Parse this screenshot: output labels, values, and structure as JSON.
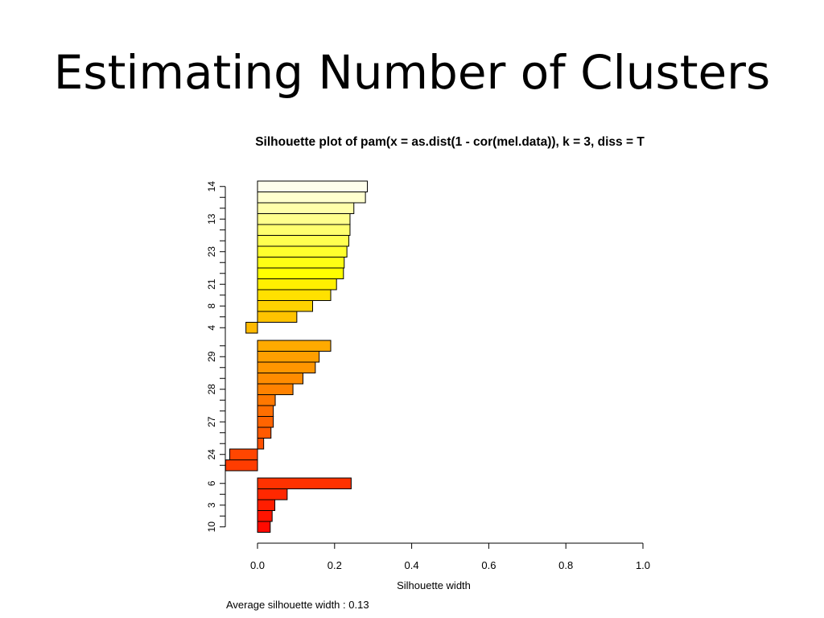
{
  "slide": {
    "title": "Estimating Number of Clusters"
  },
  "chart_data": {
    "type": "bar",
    "orientation": "horizontal",
    "title": "Silhouette plot of  pam(x = as.dist(1 - cor(mel.data)), k = 3, diss = T",
    "xlabel": "Silhouette width",
    "ylabel": "",
    "xlim": [
      0.0,
      1.0
    ],
    "x_ticks": [
      0.0,
      0.2,
      0.4,
      0.6,
      0.8,
      1.0
    ],
    "x_tick_labels": [
      "0.0",
      "0.2",
      "0.4",
      "0.6",
      "0.8",
      "1.0"
    ],
    "footer": "Average silhouette width :  0.13",
    "clusters": [
      {
        "cluster": 1,
        "bars": [
          {
            "label": "14",
            "value": 0.285,
            "color": "#fefeec"
          },
          {
            "label": "",
            "value": 0.28,
            "color": "#ffffce"
          },
          {
            "label": "",
            "value": 0.25,
            "color": "#ffffaa"
          },
          {
            "label": "13",
            "value": 0.24,
            "color": "#ffff8c"
          },
          {
            "label": "",
            "value": 0.24,
            "color": "#ffff6e"
          },
          {
            "label": "",
            "value": 0.237,
            "color": "#ffff50"
          },
          {
            "label": "23",
            "value": 0.232,
            "color": "#ffff2d"
          },
          {
            "label": "",
            "value": 0.225,
            "color": "#ffff14"
          },
          {
            "label": "",
            "value": 0.223,
            "color": "#ffff00"
          },
          {
            "label": "21",
            "value": 0.205,
            "color": "#fff000"
          },
          {
            "label": "",
            "value": 0.19,
            "color": "#ffe100"
          },
          {
            "label": "8",
            "value": 0.143,
            "color": "#ffd200"
          },
          {
            "label": "",
            "value": 0.102,
            "color": "#ffc300"
          },
          {
            "label": "4",
            "value": -0.03,
            "color": "#ffb900"
          }
        ]
      },
      {
        "cluster": 2,
        "bars": [
          {
            "label": "",
            "value": 0.19,
            "color": "#ffaa00"
          },
          {
            "label": "29",
            "value": 0.16,
            "color": "#ff9f00"
          },
          {
            "label": "",
            "value": 0.15,
            "color": "#ff9600"
          },
          {
            "label": "",
            "value": 0.118,
            "color": "#ff8c00"
          },
          {
            "label": "28",
            "value": 0.092,
            "color": "#ff8200"
          },
          {
            "label": "",
            "value": 0.046,
            "color": "#ff7800"
          },
          {
            "label": "",
            "value": 0.041,
            "color": "#ff6e00"
          },
          {
            "label": "27",
            "value": 0.041,
            "color": "#ff6400"
          },
          {
            "label": "",
            "value": 0.035,
            "color": "#ff5a00"
          },
          {
            "label": "",
            "value": 0.016,
            "color": "#ff5000"
          },
          {
            "label": "24",
            "value": -0.072,
            "color": "#ff4600"
          },
          {
            "label": "",
            "value": -0.083,
            "color": "#ff3c00"
          }
        ]
      },
      {
        "cluster": 3,
        "bars": [
          {
            "label": "6",
            "value": 0.243,
            "color": "#ff3200"
          },
          {
            "label": "",
            "value": 0.077,
            "color": "#ff2800"
          },
          {
            "label": "3",
            "value": 0.045,
            "color": "#ff1e00"
          },
          {
            "label": "",
            "value": 0.038,
            "color": "#ff1400"
          },
          {
            "label": "10",
            "value": 0.033,
            "color": "#ff0a00"
          }
        ]
      }
    ]
  }
}
